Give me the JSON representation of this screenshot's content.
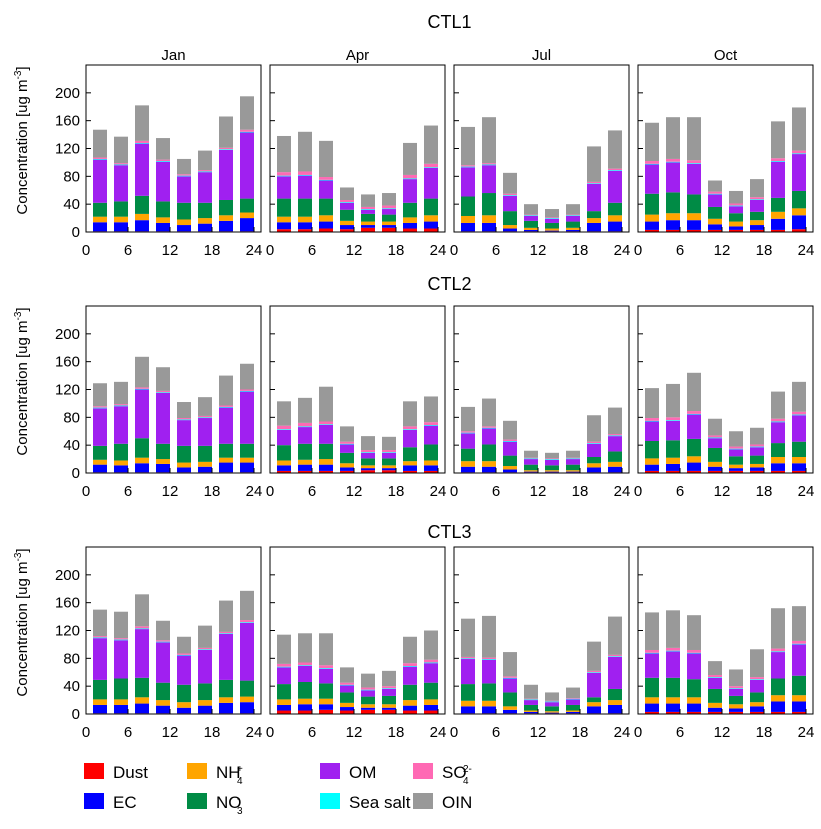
{
  "chart_data": {
    "type": "bar",
    "stacked": true,
    "xlabel": "",
    "ylabel": "Concentration [ug m",
    "ylabel_sup": "-3",
    "ylabel_close": "]",
    "ylim": [
      0,
      240
    ],
    "yticks": [
      0,
      40,
      80,
      120,
      160,
      200
    ],
    "xlim": [
      0,
      25
    ],
    "xticks": [
      0,
      6,
      12,
      18,
      24
    ],
    "hours": [
      2,
      5,
      8,
      11,
      14,
      17,
      20,
      23
    ],
    "months": [
      "Jan",
      "Apr",
      "Jul",
      "Oct"
    ],
    "species": [
      {
        "key": "dust",
        "name": "Dust",
        "color": "#ff0000"
      },
      {
        "key": "ec",
        "name": "EC",
        "color": "#0000ff"
      },
      {
        "key": "nh4",
        "name": "NH",
        "sub": "4",
        "sup": "+",
        "color": "#ffa500"
      },
      {
        "key": "no3",
        "name": "NO",
        "sub": "3",
        "sup": "-",
        "color": "#008b45"
      },
      {
        "key": "om",
        "name": "OM",
        "color": "#a020f0"
      },
      {
        "key": "seasalt",
        "name": "Sea salt",
        "color": "#00ffff"
      },
      {
        "key": "so4",
        "name": "SO",
        "sub": "4",
        "sup": "2-",
        "color": "#ff69b4"
      },
      {
        "key": "oin",
        "name": "OIN",
        "color": "#999999"
      }
    ],
    "legend_order": [
      "dust",
      "ec",
      "nh4",
      "no3",
      "om",
      "seasalt",
      "so4",
      "oin"
    ],
    "panels": [
      {
        "title": "CTL1",
        "months": [
          {
            "month": "Jan",
            "dust": [
              1,
              1,
              1,
              1,
              1,
              1,
              1,
              1
            ],
            "ec": [
              13,
              13,
              16,
              12,
              9,
              11,
              15,
              19
            ],
            "nh4": [
              8,
              8,
              9,
              8,
              8,
              8,
              8,
              8
            ],
            "no3": [
              20,
              22,
              26,
              23,
              24,
              22,
              22,
              20
            ],
            "om": [
              62,
              52,
              75,
              57,
              38,
              44,
              72,
              95
            ],
            "seasalt": [
              1,
              1,
              1,
              1,
              1,
              1,
              1,
              1
            ],
            "so4": [
              2,
              2,
              3,
              2,
              2,
              2,
              2,
              3
            ],
            "oin": [
              40,
              38,
              51,
              31,
              22,
              28,
              45,
              48
            ]
          },
          {
            "month": "Apr",
            "dust": [
              4,
              4,
              5,
              4,
              6,
              6,
              5,
              5
            ],
            "ec": [
              10,
              10,
              10,
              6,
              4,
              4,
              8,
              10
            ],
            "nh4": [
              8,
              8,
              9,
              6,
              5,
              5,
              8,
              9
            ],
            "no3": [
              26,
              26,
              24,
              16,
              11,
              10,
              21,
              24
            ],
            "om": [
              32,
              33,
              26,
              10,
              6,
              8,
              34,
              44
            ],
            "seasalt": [
              1,
              1,
              1,
              1,
              1,
              1,
              1,
              1
            ],
            "so4": [
              5,
              5,
              4,
              3,
              3,
              4,
              5,
              5
            ],
            "oin": [
              52,
              57,
              52,
              18,
              18,
              18,
              46,
              55
            ]
          },
          {
            "month": "Jul",
            "dust": [
              1,
              1,
              1,
              1,
              1,
              1,
              1,
              1
            ],
            "ec": [
              12,
              12,
              4,
              2,
              1,
              2,
              12,
              14
            ],
            "nh4": [
              10,
              11,
              5,
              3,
              3,
              3,
              7,
              9
            ],
            "no3": [
              28,
              32,
              20,
              10,
              8,
              9,
              10,
              18
            ],
            "om": [
              42,
              40,
              22,
              7,
              6,
              8,
              39,
              46
            ],
            "seasalt": [
              1,
              1,
              1,
              1,
              1,
              1,
              1,
              1
            ],
            "so4": [
              2,
              2,
              2,
              1,
              1,
              1,
              2,
              2
            ],
            "oin": [
              55,
              66,
              30,
              15,
              12,
              15,
              51,
              55
            ]
          },
          {
            "month": "Oct",
            "dust": [
              3,
              3,
              3,
              3,
              3,
              3,
              3,
              4
            ],
            "ec": [
              12,
              14,
              14,
              8,
              5,
              7,
              16,
              20
            ],
            "nh4": [
              10,
              10,
              10,
              8,
              7,
              7,
              10,
              10
            ],
            "no3": [
              30,
              30,
              27,
              17,
              12,
              12,
              20,
              25
            ],
            "om": [
              42,
              43,
              44,
              18,
              10,
              17,
              52,
              53
            ],
            "seasalt": [
              1,
              1,
              1,
              1,
              1,
              1,
              1,
              1
            ],
            "so4": [
              4,
              4,
              4,
              3,
              3,
              3,
              4,
              4
            ],
            "oin": [
              55,
              60,
              62,
              16,
              18,
              26,
              53,
              62
            ]
          }
        ]
      },
      {
        "title": "CTL2",
        "months": [
          {
            "month": "Jan",
            "dust": [
              1,
              1,
              1,
              1,
              1,
              1,
              1,
              1
            ],
            "ec": [
              11,
              10,
              13,
              12,
              7,
              8,
              14,
              14
            ],
            "nh4": [
              7,
              7,
              8,
              7,
              7,
              7,
              7,
              7
            ],
            "no3": [
              20,
              24,
              28,
              22,
              24,
              23,
              20,
              20
            ],
            "om": [
              54,
              54,
              70,
              73,
              37,
              40,
              52,
              75
            ],
            "seasalt": [
              1,
              1,
              1,
              1,
              1,
              1,
              1,
              1
            ],
            "so4": [
              2,
              2,
              2,
              2,
              2,
              2,
              2,
              2
            ],
            "oin": [
              33,
              32,
              44,
              34,
              23,
              27,
              43,
              37
            ]
          },
          {
            "month": "Apr",
            "dust": [
              3,
              3,
              3,
              3,
              4,
              4,
              3,
              3
            ],
            "ec": [
              8,
              9,
              9,
              5,
              3,
              3,
              8,
              8
            ],
            "nh4": [
              7,
              7,
              8,
              6,
              4,
              4,
              6,
              7
            ],
            "no3": [
              22,
              23,
              22,
              15,
              10,
              10,
              20,
              23
            ],
            "om": [
              22,
              24,
              27,
              12,
              8,
              8,
              25,
              27
            ],
            "seasalt": [
              1,
              1,
              1,
              1,
              1,
              1,
              1,
              1
            ],
            "so4": [
              5,
              5,
              4,
              3,
              3,
              3,
              4,
              4
            ],
            "oin": [
              35,
              36,
              50,
              22,
              20,
              19,
              36,
              37
            ]
          },
          {
            "month": "Jul",
            "dust": [
              1,
              1,
              1,
              1,
              1,
              1,
              1,
              1
            ],
            "ec": [
              8,
              8,
              4,
              1,
              1,
              1,
              7,
              8
            ],
            "nh4": [
              8,
              8,
              5,
              2,
              2,
              2,
              6,
              7
            ],
            "no3": [
              18,
              24,
              15,
              8,
              7,
              8,
              9,
              15
            ],
            "om": [
              22,
              23,
              20,
              8,
              8,
              8,
              19,
              22
            ],
            "seasalt": [
              1,
              1,
              1,
              1,
              1,
              1,
              1,
              1
            ],
            "so4": [
              2,
              2,
              2,
              1,
              1,
              1,
              2,
              2
            ],
            "oin": [
              35,
              40,
              27,
              10,
              8,
              10,
              38,
              38
            ]
          },
          {
            "month": "Oct",
            "dust": [
              3,
              3,
              3,
              3,
              3,
              3,
              3,
              3
            ],
            "ec": [
              9,
              10,
              12,
              6,
              4,
              5,
              11,
              11
            ],
            "nh4": [
              9,
              9,
              9,
              7,
              5,
              5,
              9,
              9
            ],
            "no3": [
              25,
              25,
              25,
              20,
              12,
              12,
              20,
              22
            ],
            "om": [
              28,
              28,
              35,
              14,
              10,
              12,
              30,
              38
            ],
            "seasalt": [
              1,
              1,
              1,
              1,
              1,
              1,
              1,
              1
            ],
            "so4": [
              4,
              4,
              4,
              3,
              3,
              3,
              4,
              4
            ],
            "oin": [
              43,
              48,
              55,
              24,
              22,
              24,
              39,
              43
            ]
          }
        ]
      },
      {
        "title": "CTL3",
        "months": [
          {
            "month": "Jan",
            "dust": [
              1,
              1,
              1,
              1,
              1,
              1,
              1,
              1
            ],
            "ec": [
              12,
              12,
              14,
              11,
              8,
              11,
              15,
              16
            ],
            "nh4": [
              8,
              8,
              9,
              8,
              8,
              8,
              8,
              8
            ],
            "no3": [
              28,
              30,
              28,
              25,
              25,
              24,
              25,
              23
            ],
            "om": [
              60,
              55,
              70,
              58,
              42,
              48,
              66,
              83
            ],
            "seasalt": [
              1,
              1,
              1,
              1,
              1,
              1,
              1,
              1
            ],
            "so4": [
              2,
              2,
              3,
              2,
              2,
              2,
              2,
              3
            ],
            "oin": [
              38,
              38,
              46,
              28,
              24,
              32,
              45,
              42
            ]
          },
          {
            "month": "Apr",
            "dust": [
              5,
              5,
              6,
              5,
              6,
              6,
              5,
              5
            ],
            "ec": [
              8,
              9,
              8,
              5,
              3,
              3,
              7,
              8
            ],
            "nh4": [
              8,
              8,
              8,
              6,
              5,
              5,
              8,
              8
            ],
            "no3": [
              22,
              24,
              22,
              15,
              11,
              12,
              22,
              24
            ],
            "om": [
              24,
              23,
              21,
              10,
              9,
              10,
              26,
              28
            ],
            "seasalt": [
              1,
              1,
              1,
              1,
              1,
              1,
              1,
              1
            ],
            "so4": [
              4,
              4,
              4,
              3,
              3,
              3,
              4,
              4
            ],
            "oin": [
              42,
              42,
              46,
              22,
              20,
              22,
              38,
              42
            ]
          },
          {
            "month": "Jul",
            "dust": [
              1,
              1,
              1,
              1,
              1,
              1,
              1,
              1
            ],
            "ec": [
              10,
              10,
              5,
              2,
              1,
              2,
              10,
              12
            ],
            "nh4": [
              8,
              8,
              5,
              2,
              2,
              2,
              6,
              7
            ],
            "no3": [
              24,
              25,
              20,
              8,
              7,
              8,
              7,
              16
            ],
            "om": [
              36,
              34,
              20,
              7,
              6,
              8,
              35,
              46
            ],
            "seasalt": [
              1,
              1,
              1,
              1,
              1,
              1,
              1,
              1
            ],
            "so4": [
              2,
              2,
              2,
              1,
              1,
              1,
              2,
              2
            ],
            "oin": [
              55,
              60,
              35,
              20,
              12,
              15,
              42,
              55
            ]
          },
          {
            "month": "Oct",
            "dust": [
              3,
              3,
              3,
              3,
              3,
              3,
              3,
              3
            ],
            "ec": [
              12,
              12,
              12,
              6,
              5,
              8,
              15,
              15
            ],
            "nh4": [
              9,
              9,
              9,
              7,
              6,
              6,
              9,
              9
            ],
            "no3": [
              28,
              28,
              26,
              20,
              12,
              14,
              24,
              28
            ],
            "om": [
              35,
              38,
              37,
              16,
              10,
              18,
              38,
              45
            ],
            "seasalt": [
              1,
              1,
              1,
              1,
              1,
              1,
              1,
              1
            ],
            "so4": [
              4,
              4,
              4,
              3,
              3,
              3,
              4,
              4
            ],
            "oin": [
              54,
              54,
              50,
              20,
              24,
              40,
              58,
              50
            ]
          }
        ]
      }
    ]
  }
}
